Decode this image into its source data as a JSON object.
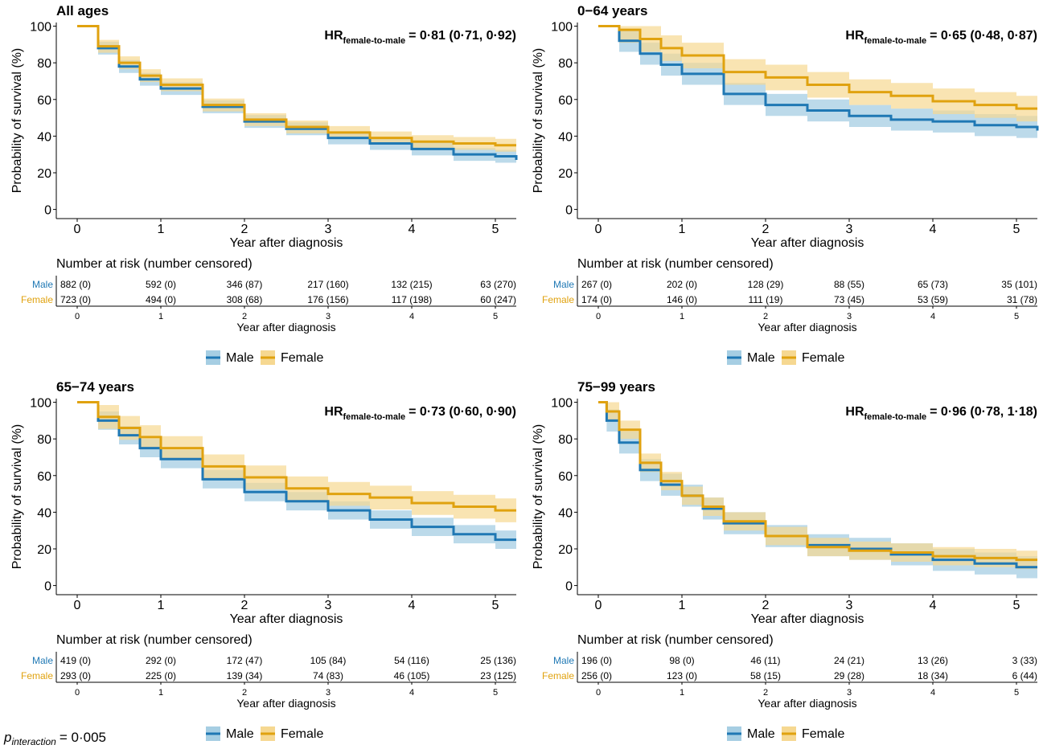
{
  "colors": {
    "male": "#1f78b4",
    "female": "#e0a20f",
    "male_band": "#a6cee3",
    "female_band": "#f6d891"
  },
  "legend": {
    "male": "Male",
    "female": "Female"
  },
  "p_interaction": {
    "symbol": "p",
    "sub": "interaction",
    "value": "= 0·005"
  },
  "chart_data": [
    {
      "type": "line",
      "title": "All ages",
      "hr": {
        "prefix": "HR",
        "sub": "female-to-male",
        "value": "= 0·81 (0·71, 0·92)"
      },
      "xlabel": "Year after diagnosis",
      "ylabel": "Probability of survival (%)",
      "xlim": [
        -0.25,
        5.25
      ],
      "ylim": [
        -5,
        102
      ],
      "xticks": [
        "0",
        "1",
        "2",
        "3",
        "4",
        "5"
      ],
      "yticks": [
        "0",
        "20",
        "40",
        "60",
        "80",
        "100"
      ],
      "series": [
        {
          "name": "Male",
          "x": [
            0,
            0.25,
            0.5,
            0.75,
            1,
            1.5,
            2,
            2.5,
            3,
            3.5,
            4,
            4.5,
            5,
            5.25
          ],
          "y": [
            100,
            88,
            78,
            71,
            66,
            56,
            48,
            44,
            39,
            36,
            33,
            30,
            29,
            27
          ],
          "ci": 3.5
        },
        {
          "name": "Female",
          "x": [
            0,
            0.25,
            0.5,
            0.75,
            1,
            1.5,
            2,
            2.5,
            3,
            3.5,
            4,
            4.5,
            5,
            5.25
          ],
          "y": [
            100,
            89,
            80,
            73,
            68,
            57,
            49,
            45,
            42,
            39,
            37,
            36,
            35,
            35
          ],
          "ci": 3.5
        }
      ],
      "risk": {
        "title": "Number at risk (number censored)",
        "xlabel": "Year after diagnosis",
        "male_label": "Male",
        "female_label": "Female",
        "male": [
          "882 (0)",
          "592 (0)",
          "346 (87)",
          "217 (160)",
          "132 (215)",
          "63 (270)"
        ],
        "female": [
          "723 (0)",
          "494 (0)",
          "308 (68)",
          "176 (156)",
          "117 (198)",
          "60 (247)"
        ]
      }
    },
    {
      "type": "line",
      "title": "0−64 years",
      "hr": {
        "prefix": "HR",
        "sub": "female-to-male",
        "value": "= 0·65 (0·48, 0·87)"
      },
      "xlabel": "Year after diagnosis",
      "ylabel": "Probability of survival (%)",
      "xlim": [
        -0.25,
        5.25
      ],
      "ylim": [
        -5,
        102
      ],
      "xticks": [
        "0",
        "1",
        "2",
        "3",
        "4",
        "5"
      ],
      "yticks": [
        "0",
        "20",
        "40",
        "60",
        "80",
        "100"
      ],
      "series": [
        {
          "name": "Male",
          "x": [
            0,
            0.25,
            0.5,
            0.75,
            1,
            1.5,
            2,
            2.5,
            3,
            3.5,
            4,
            4.5,
            5,
            5.25
          ],
          "y": [
            100,
            92,
            85,
            79,
            74,
            63,
            57,
            54,
            51,
            49,
            48,
            46,
            45,
            43
          ],
          "ci": 6
        },
        {
          "name": "Female",
          "x": [
            0,
            0.25,
            0.5,
            0.75,
            1,
            1.5,
            2,
            2.5,
            3,
            3.5,
            4,
            4.5,
            5,
            5.25
          ],
          "y": [
            100,
            98,
            93,
            88,
            84,
            75,
            72,
            68,
            64,
            62,
            59,
            57,
            55,
            55
          ],
          "ci": 7
        }
      ],
      "risk": {
        "title": "Number at risk (number censored)",
        "xlabel": "Year after diagnosis",
        "male_label": "Male",
        "female_label": "Female",
        "male": [
          "267 (0)",
          "202 (0)",
          "128 (29)",
          "88 (55)",
          "65 (73)",
          "35 (101)"
        ],
        "female": [
          "174 (0)",
          "146 (0)",
          "111 (19)",
          "73 (45)",
          "53 (59)",
          "31 (78)"
        ]
      }
    },
    {
      "type": "line",
      "title": "65−74 years",
      "hr": {
        "prefix": "HR",
        "sub": "female-to-male",
        "value": "= 0·73 (0·60, 0·90)"
      },
      "xlabel": "Year after diagnosis",
      "ylabel": "Probability of survival (%)",
      "xlim": [
        -0.25,
        5.25
      ],
      "ylim": [
        -5,
        102
      ],
      "xticks": [
        "0",
        "1",
        "2",
        "3",
        "4",
        "5"
      ],
      "yticks": [
        "0",
        "20",
        "40",
        "60",
        "80",
        "100"
      ],
      "series": [
        {
          "name": "Male",
          "x": [
            0,
            0.25,
            0.5,
            0.75,
            1,
            1.5,
            2,
            2.5,
            3,
            3.5,
            4,
            4.5,
            5,
            5.25
          ],
          "y": [
            100,
            90,
            82,
            75,
            69,
            58,
            51,
            46,
            41,
            36,
            32,
            28,
            25,
            25
          ],
          "ci": 5
        },
        {
          "name": "Female",
          "x": [
            0,
            0.25,
            0.5,
            0.75,
            1,
            1.5,
            2,
            2.5,
            3,
            3.5,
            4,
            4.5,
            5,
            5.25
          ],
          "y": [
            100,
            92,
            86,
            81,
            75,
            65,
            59,
            53,
            50,
            48,
            45,
            43,
            41,
            41
          ],
          "ci": 6.5
        }
      ],
      "risk": {
        "title": "Number at risk (number censored)",
        "xlabel": "Year after diagnosis",
        "male_label": "Male",
        "female_label": "Female",
        "male": [
          "419 (0)",
          "292 (0)",
          "172 (47)",
          "105 (84)",
          "54 (116)",
          "25 (136)"
        ],
        "female": [
          "293 (0)",
          "225 (0)",
          "139 (34)",
          "74 (83)",
          "46 (105)",
          "23 (125)"
        ]
      }
    },
    {
      "type": "line",
      "title": "75−99 years",
      "hr": {
        "prefix": "HR",
        "sub": "female-to-male",
        "value": "= 0·96 (0·78, 1·18)"
      },
      "xlabel": "Year after diagnosis",
      "ylabel": "Probability of survival (%)",
      "xlim": [
        -0.25,
        5.25
      ],
      "ylim": [
        -5,
        102
      ],
      "xticks": [
        "0",
        "1",
        "2",
        "3",
        "4",
        "5"
      ],
      "yticks": [
        "0",
        "20",
        "40",
        "60",
        "80",
        "100"
      ],
      "series": [
        {
          "name": "Male",
          "x": [
            0,
            0.1,
            0.25,
            0.5,
            0.75,
            1,
            1.25,
            1.5,
            2,
            2.5,
            3,
            3.5,
            4,
            4.5,
            5,
            5.25
          ],
          "y": [
            100,
            90,
            78,
            63,
            55,
            49,
            42,
            34,
            27,
            22,
            20,
            17,
            14,
            12,
            10,
            10
          ],
          "ci": 6
        },
        {
          "name": "Female",
          "x": [
            0,
            0.1,
            0.25,
            0.5,
            0.75,
            1,
            1.25,
            1.5,
            2,
            2.5,
            3,
            3.5,
            4,
            4.5,
            5,
            5.25
          ],
          "y": [
            100,
            95,
            85,
            67,
            57,
            49,
            43,
            35,
            27,
            21,
            19,
            18,
            16,
            15,
            14,
            14
          ],
          "ci": 5
        }
      ],
      "risk": {
        "title": "Number at risk (number censored)",
        "xlabel": "Year after diagnosis",
        "male_label": "Male",
        "female_label": "Female",
        "male": [
          "196 (0)",
          "98 (0)",
          "46 (11)",
          "24 (21)",
          "13 (26)",
          "3 (33)"
        ],
        "female": [
          "256 (0)",
          "123 (0)",
          "58 (15)",
          "29 (28)",
          "18 (34)",
          "6 (44)"
        ]
      }
    }
  ]
}
